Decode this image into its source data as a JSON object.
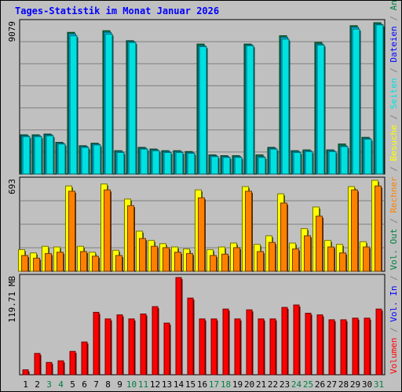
{
  "title": "Tages-Statistik im Monat Januar 2026",
  "chart_data": [
    {
      "type": "bar",
      "panel": "top",
      "ylabel": "9079",
      "ylim": [
        0,
        9079
      ],
      "categories": [
        "1",
        "2",
        "3",
        "4",
        "5",
        "6",
        "7",
        "8",
        "9",
        "10",
        "11",
        "12",
        "13",
        "14",
        "15",
        "16",
        "17",
        "18",
        "19",
        "20",
        "21",
        "22",
        "23",
        "24",
        "25",
        "26",
        "27",
        "28",
        "29",
        "30",
        "31"
      ],
      "series": [
        {
          "name": "Anfragen",
          "color": "#008040",
          "values": [
            2350,
            2350,
            2400,
            1900,
            8500,
            1700,
            1850,
            8600,
            1400,
            8000,
            1600,
            1500,
            1400,
            1400,
            1350,
            7800,
            1150,
            1100,
            1100,
            7800,
            1150,
            1600,
            8300,
            1400,
            1450,
            7900,
            1450,
            1800,
            8900,
            2200,
            9079
          ]
        },
        {
          "name": "Dateien",
          "color": "#00C8FF",
          "values": [
            2300,
            2300,
            2350,
            1850,
            8400,
            1650,
            1800,
            8500,
            1350,
            7950,
            1550,
            1450,
            1350,
            1350,
            1300,
            7700,
            1100,
            1050,
            1050,
            7750,
            1050,
            1550,
            8200,
            1350,
            1400,
            7800,
            1400,
            1700,
            8800,
            2150,
            9000
          ]
        },
        {
          "name": "Seiten",
          "color": "#00E0E0",
          "values": [
            2250,
            2250,
            2300,
            1800,
            8300,
            1600,
            1750,
            8400,
            1300,
            7900,
            1500,
            1400,
            1300,
            1300,
            1250,
            7650,
            1050,
            1000,
            1000,
            7700,
            1000,
            1500,
            8100,
            1300,
            1350,
            7750,
            1350,
            1650,
            8700,
            2100,
            8950
          ]
        }
      ],
      "legend": [
        "Anfragen",
        "Dateien",
        "Seiten"
      ]
    },
    {
      "type": "bar",
      "panel": "middle",
      "ylabel": "693",
      "ylim": [
        0,
        693
      ],
      "categories": [
        "1",
        "2",
        "3",
        "4",
        "5",
        "6",
        "7",
        "8",
        "9",
        "10",
        "11",
        "12",
        "13",
        "14",
        "15",
        "16",
        "17",
        "18",
        "19",
        "20",
        "21",
        "22",
        "23",
        "24",
        "25",
        "26",
        "27",
        "28",
        "29",
        "30",
        "31"
      ],
      "series": [
        {
          "name": "Besuche",
          "color": "#FFFF00",
          "values": [
            165,
            140,
            190,
            185,
            650,
            190,
            145,
            665,
            160,
            550,
            305,
            235,
            210,
            185,
            170,
            620,
            165,
            185,
            215,
            645,
            205,
            270,
            590,
            215,
            325,
            490,
            235,
            205,
            645,
            225,
            693
          ]
        },
        {
          "name": "Rechner",
          "color": "#FF8000",
          "values": [
            120,
            100,
            135,
            145,
            610,
            150,
            115,
            620,
            120,
            500,
            250,
            190,
            180,
            145,
            135,
            560,
            120,
            130,
            180,
            610,
            150,
            220,
            520,
            170,
            270,
            420,
            185,
            140,
            620,
            185,
            650
          ]
        }
      ],
      "legend": [
        "Besuche",
        "Rechner"
      ]
    },
    {
      "type": "bar",
      "panel": "bottom",
      "ylabel": "119.71 MB",
      "ylim": [
        0,
        119.71
      ],
      "categories": [
        "1",
        "2",
        "3",
        "4",
        "5",
        "6",
        "7",
        "8",
        "9",
        "10",
        "11",
        "12",
        "13",
        "14",
        "15",
        "16",
        "17",
        "18",
        "19",
        "20",
        "21",
        "22",
        "23",
        "24",
        "25",
        "26",
        "27",
        "28",
        "29",
        "30",
        "31"
      ],
      "series": [
        {
          "name": "Volumen",
          "color": "#FF0000",
          "values": [
            6.1,
            26.3,
            15.2,
            17.2,
            28.8,
            40.4,
            76.8,
            68.7,
            73.8,
            68.7,
            74.8,
            83.9,
            63.6,
            119.71,
            94.4,
            68.7,
            68.7,
            80.9,
            68.7,
            79.9,
            68.7,
            68.7,
            82.9,
            85.9,
            75.8,
            73.8,
            67.7,
            67.7,
            69.7,
            69.7,
            80.9
          ]
        }
      ],
      "legend": [
        "Volumen",
        "Vol. In",
        "Vol. Out"
      ]
    }
  ],
  "legend_text": {
    "volumen": "Volumen",
    "vol_in": "Vol. In",
    "vol_out": "Vol. Out",
    "rechner": "Rechner",
    "besuche": "Besuche",
    "seiten": "Seiten",
    "dateien": "Dateien",
    "anfragen": "Anfragen",
    "sep": " / "
  },
  "weekend_days": [
    "3",
    "4",
    "10",
    "11",
    "17",
    "18",
    "24",
    "25",
    "31"
  ],
  "colors": {
    "background": "#C0C0C0",
    "grid": "#808080",
    "title": "#0000FF",
    "weekend_label": "#008040",
    "weekday_label": "#000000",
    "legend_blue": "#0000FF",
    "legend_gray": "#808080"
  }
}
